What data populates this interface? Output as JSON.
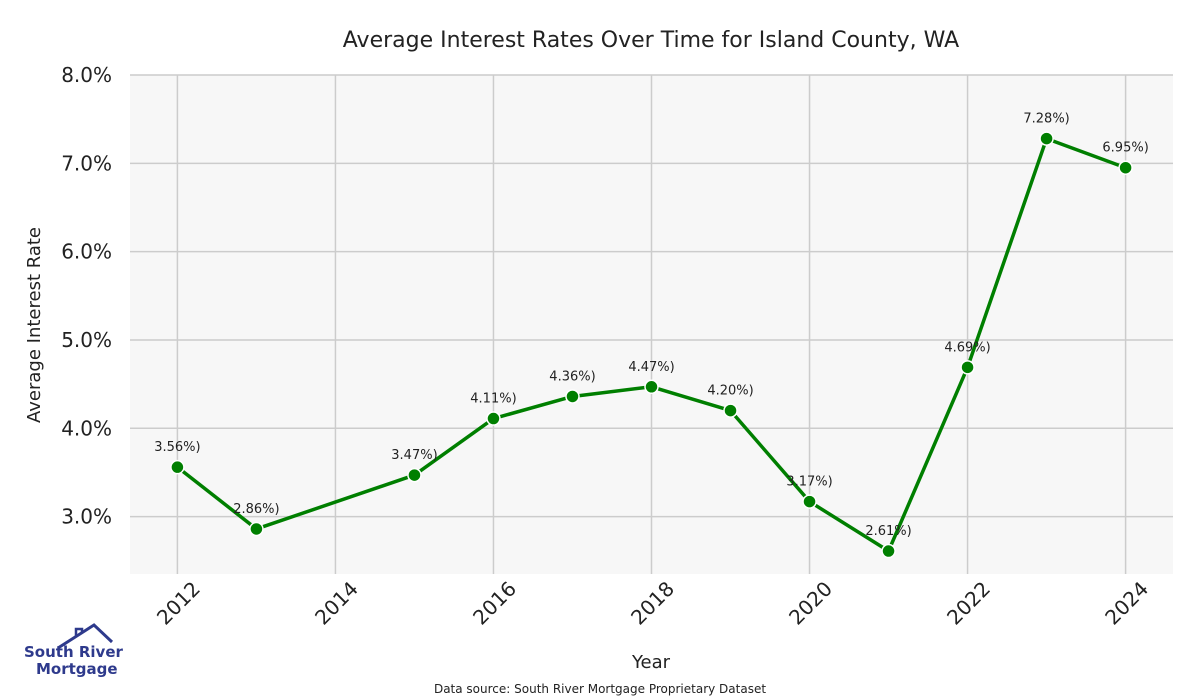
{
  "colors": {
    "line": "#007f00",
    "plot_bg": "#f7f7f7",
    "grid": "#cccccc",
    "logo_blue": "#2e3a8c"
  },
  "logo": {
    "line1": "South River",
    "line2": "Mortgage"
  },
  "source_note": "Data source: South River Mortgage Proprietary Dataset",
  "chart_data": {
    "type": "line",
    "title": "Average Interest Rates Over Time for Island County, WA",
    "xlabel": "Year",
    "ylabel": "Average Interest Rate",
    "x": [
      2012,
      2013,
      2015,
      2016,
      2017,
      2018,
      2019,
      2020,
      2021,
      2022,
      2023,
      2024
    ],
    "series": [
      {
        "values": [
          3.56,
          2.86,
          3.47,
          4.11,
          4.36,
          4.47,
          4.2,
          3.17,
          2.61,
          4.69,
          7.28,
          6.95
        ]
      }
    ],
    "point_labels": [
      "3.56%)",
      "2.86%)",
      "3.47%)",
      "4.11%)",
      "4.36%)",
      "4.47%)",
      "4.20%)",
      "3.17%)",
      "2.61%)",
      "4.69%)",
      "7.28%)",
      "6.95%)"
    ],
    "xticks": [
      "2012",
      "2014",
      "2016",
      "2018",
      "2020",
      "2022",
      "2024"
    ],
    "yticks": [
      "3.0%",
      "4.0%",
      "5.0%",
      "6.0%",
      "7.0%",
      "8.0%"
    ],
    "ytick_values": [
      3,
      4,
      5,
      6,
      7,
      8
    ],
    "xlim": [
      2011.4,
      2024.6
    ],
    "ylim": [
      2.35,
      8.0
    ],
    "grid": true,
    "markers": true
  }
}
